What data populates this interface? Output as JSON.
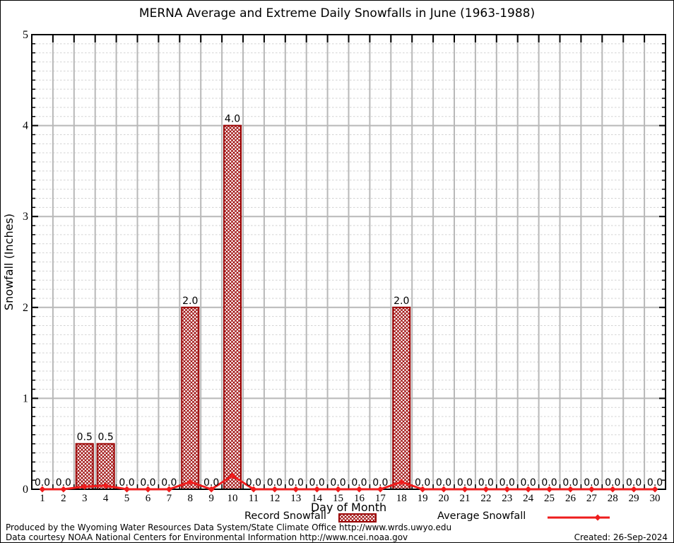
{
  "title": "MERNA Average and Extreme Daily Snowfalls in June (1963-1988)",
  "chart_data": {
    "type": "bar",
    "subtype": "bar-plus-line-combo",
    "x": [
      1,
      2,
      3,
      4,
      5,
      6,
      7,
      8,
      9,
      10,
      11,
      12,
      13,
      14,
      15,
      16,
      17,
      18,
      19,
      20,
      21,
      22,
      23,
      24,
      25,
      26,
      27,
      28,
      29,
      30
    ],
    "series": [
      {
        "name": "Record Snowfall",
        "type": "bar",
        "values": [
          0,
          0,
          0.5,
          0.5,
          0,
          0,
          0,
          2.0,
          0,
          4.0,
          0,
          0,
          0,
          0,
          0,
          0,
          0,
          2.0,
          0,
          0,
          0,
          0,
          0,
          0,
          0,
          0,
          0,
          0,
          0,
          0
        ]
      },
      {
        "name": "Average Snowfall",
        "type": "line",
        "values": [
          0,
          0,
          0.03,
          0.04,
          0,
          0,
          0,
          0.08,
          0,
          0.15,
          0,
          0,
          0,
          0,
          0,
          0,
          0,
          0.08,
          0,
          0,
          0,
          0,
          0,
          0,
          0,
          0,
          0,
          0,
          0,
          0
        ]
      }
    ],
    "value_labels": [
      "0.0",
      "0.0",
      "0.5",
      "0.5",
      "0.0",
      "0.0",
      "0.0",
      "2.0",
      "0.0",
      "4.0",
      "0.0",
      "0.0",
      "0.0",
      "0.0",
      "0.0",
      "0.0",
      "0.0",
      "2.0",
      "0.0",
      "0.0",
      "0.0",
      "0.0",
      "0.0",
      "0.0",
      "0.0",
      "0.0",
      "0.0",
      "0.0",
      "0.0",
      "0.0"
    ],
    "title": "MERNA Average and Extreme Daily Snowfalls in June (1963-1988)",
    "xlabel": "Day of Month",
    "ylabel": "Snowfall (Inches)",
    "ylim": [
      0,
      5
    ],
    "yticks": [
      0,
      1,
      2,
      3,
      4,
      5
    ],
    "y_minor_step": 0.1,
    "grid": "vertical solid gray between days; horizontal solid gray at integers, dashed gray at 0.1 minors",
    "legend_position": "bottom",
    "colors": {
      "bar_border": "#990000",
      "bar_fill_pattern": "dark-red-crosshatch-on-white",
      "line": "#ee1c1c",
      "grid_major": "#b8b8b8",
      "grid_minor": "#d2d2d2",
      "frame": "#000000"
    }
  },
  "legend": {
    "record_label": "Record Snowfall",
    "average_label": "Average Snowfall"
  },
  "footer": {
    "line1": "Produced by the Wyoming Water Resources Data System/State Climate Office http://www.wrds.uwyo.edu",
    "line2": "Data courtesy NOAA National Centers for Environmental Information http://www.ncei.noaa.gov",
    "created": "Created: 26-Sep-2024"
  }
}
